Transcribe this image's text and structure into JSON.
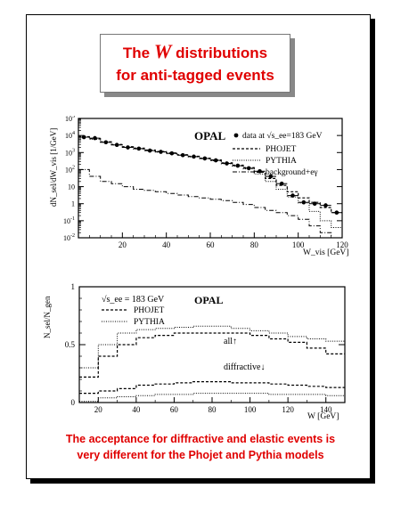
{
  "title": {
    "line1_prefix": "The",
    "line1_symbol": "W",
    "line1_suffix": "distributions",
    "line2": "for anti-tagged events"
  },
  "caption": {
    "line1": "The acceptance for diffractive and elastic events is",
    "line2": "very different for the Phojet and Pythia models"
  },
  "colors": {
    "accent": "#e00000",
    "ink": "#000000"
  },
  "chart_data": [
    {
      "type": "line",
      "panel": "top",
      "scale": "log-y",
      "label": "OPAL",
      "xlabel": "W_vis [GeV]",
      "ylabel": "dN_sel/dW_vis [1/GeV]",
      "xlim": [
        0,
        120
      ],
      "ylim": [
        0.01,
        100000
      ],
      "x_ticks": [
        "20",
        "40",
        "60",
        "80",
        "100",
        "120"
      ],
      "y_ticks": [
        "10^-2",
        "10^-1",
        "1",
        "10",
        "10^2",
        "10^3",
        "10^4",
        "10^5"
      ],
      "legend": [
        "data at √s_ee=183 GeV",
        "PHOJET",
        "PYTHIA",
        "background+eγ"
      ],
      "bin_edges": [
        0,
        5,
        10,
        15,
        20,
        25,
        30,
        35,
        40,
        45,
        50,
        55,
        60,
        65,
        70,
        75,
        80,
        85,
        90,
        95,
        100,
        105,
        110,
        115,
        120
      ],
      "data": {
        "name": "data at √s_ee=183 GeV",
        "x": [
          2.5,
          7.5,
          12.5,
          17.5,
          22.5,
          27.5,
          32.5,
          37.5,
          42.5,
          47.5,
          52.5,
          57.5,
          62.5,
          67.5,
          72.5,
          77.5,
          82.5,
          87.5,
          92.5,
          97.5,
          102.5,
          107.5,
          112.5,
          117.5
        ],
        "y": [
          8000,
          7000,
          4000,
          2800,
          2000,
          1700,
          1300,
          1100,
          900,
          700,
          580,
          450,
          350,
          230,
          170,
          120,
          80,
          40,
          15,
          3,
          1.2,
          1,
          0.8,
          0.3
        ]
      },
      "series": [
        {
          "name": "PHOJET",
          "values": [
            8500,
            6500,
            4300,
            3000,
            2200,
            1800,
            1400,
            1150,
            950,
            750,
            600,
            470,
            370,
            250,
            180,
            130,
            70,
            30,
            12,
            5,
            2.2,
            1.2,
            0.6,
            0.3
          ]
        },
        {
          "name": "PYTHIA",
          "values": [
            8000,
            6000,
            4000,
            2800,
            2000,
            1600,
            1300,
            1050,
            850,
            700,
            550,
            430,
            330,
            220,
            160,
            110,
            55,
            20,
            7,
            2.5,
            1.1,
            0.35,
            0.1,
            0.04
          ]
        },
        {
          "name": "background+eγ",
          "values": [
            100,
            40,
            20,
            15,
            10,
            7,
            6,
            5,
            4,
            3.2,
            2.6,
            2.2,
            1.8,
            1.5,
            1.2,
            0.9,
            0.6,
            0.4,
            0.3,
            0.2,
            0.12,
            0.05,
            0.02,
            0.01
          ]
        }
      ]
    },
    {
      "type": "line",
      "panel": "bottom",
      "label": "OPAL",
      "energy_label": "√s_ee = 183 GeV",
      "xlabel": "W [GeV]",
      "ylabel": "N_sel/N_gen",
      "xlim": [
        10,
        150
      ],
      "ylim": [
        0,
        1
      ],
      "x_ticks": [
        "20",
        "40",
        "60",
        "80",
        "100",
        "120",
        "140"
      ],
      "y_ticks": [
        "0",
        "0.5",
        "1"
      ],
      "legend": [
        "PHOJET",
        "PYTHIA"
      ],
      "annotations": [
        "all↑",
        "diffractive↓"
      ],
      "bin_edges": [
        10,
        20,
        30,
        40,
        50,
        60,
        70,
        80,
        90,
        100,
        110,
        120,
        130,
        140,
        150
      ],
      "series": [
        {
          "name": "PHOJET",
          "group": "all",
          "values": [
            0.22,
            0.4,
            0.5,
            0.56,
            0.58,
            0.6,
            0.6,
            0.6,
            0.6,
            0.58,
            0.55,
            0.52,
            0.47,
            0.42
          ]
        },
        {
          "name": "PYTHIA",
          "group": "all",
          "values": [
            0.3,
            0.5,
            0.6,
            0.63,
            0.64,
            0.65,
            0.66,
            0.66,
            0.64,
            0.62,
            0.6,
            0.57,
            0.55,
            0.53
          ]
        },
        {
          "name": "PHOJET",
          "group": "diffractive",
          "values": [
            0.08,
            0.1,
            0.12,
            0.15,
            0.16,
            0.17,
            0.18,
            0.18,
            0.17,
            0.17,
            0.16,
            0.15,
            0.14,
            0.13
          ]
        },
        {
          "name": "PYTHIA",
          "group": "diffractive",
          "values": [
            0.01,
            0.04,
            0.05,
            0.06,
            0.07,
            0.07,
            0.08,
            0.08,
            0.08,
            0.08,
            0.07,
            0.07,
            0.07,
            0.06
          ]
        }
      ]
    }
  ]
}
